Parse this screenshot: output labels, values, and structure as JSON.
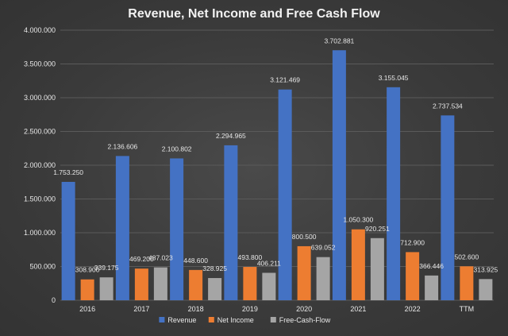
{
  "chart_data": {
    "type": "bar",
    "title": "Revenue, Net Income and Free Cash Flow",
    "xlabel": "",
    "ylabel": "",
    "categories": [
      "2016",
      "2017",
      "2018",
      "2019",
      "2020",
      "2021",
      "2022",
      "TTM"
    ],
    "ylim": [
      0,
      4000000
    ],
    "yticks": [
      0,
      500000,
      1000000,
      1500000,
      2000000,
      2500000,
      3000000,
      3500000,
      4000000
    ],
    "ytick_labels": [
      "0",
      "500.000",
      "1.000.000",
      "1.500.000",
      "2.000.000",
      "2.500.000",
      "3.000.000",
      "3.500.000",
      "4.000.000"
    ],
    "grid": true,
    "legend_position": "bottom",
    "series": [
      {
        "name": "Revenue",
        "color": "#4472C4",
        "values": [
          1753250,
          2136606,
          2100802,
          2294965,
          3121469,
          3702881,
          3155045,
          2737534
        ],
        "labels": [
          "1.753.250",
          "2.136.606",
          "2.100.802",
          "2.294.965",
          "3.121.469",
          "3.702.881",
          "3.155.045",
          "2.737.534"
        ]
      },
      {
        "name": "Net Income",
        "color": "#ED7D31",
        "values": [
          308900,
          469200,
          448600,
          493800,
          800500,
          1050300,
          712900,
          502600
        ],
        "labels": [
          "308.900",
          "469.200",
          "448.600",
          "493.800",
          "800.500",
          "1.050.300",
          "712.900",
          "502.600"
        ]
      },
      {
        "name": "Free-Cash-Flow",
        "color": "#A5A5A5",
        "values": [
          339175,
          487023,
          328925,
          406211,
          639052,
          920251,
          366446,
          313925
        ],
        "labels": [
          "339.175",
          "487.023",
          "328.925",
          "406.211",
          "639.052",
          "920.251",
          "366.446",
          "313.925"
        ]
      }
    ]
  }
}
